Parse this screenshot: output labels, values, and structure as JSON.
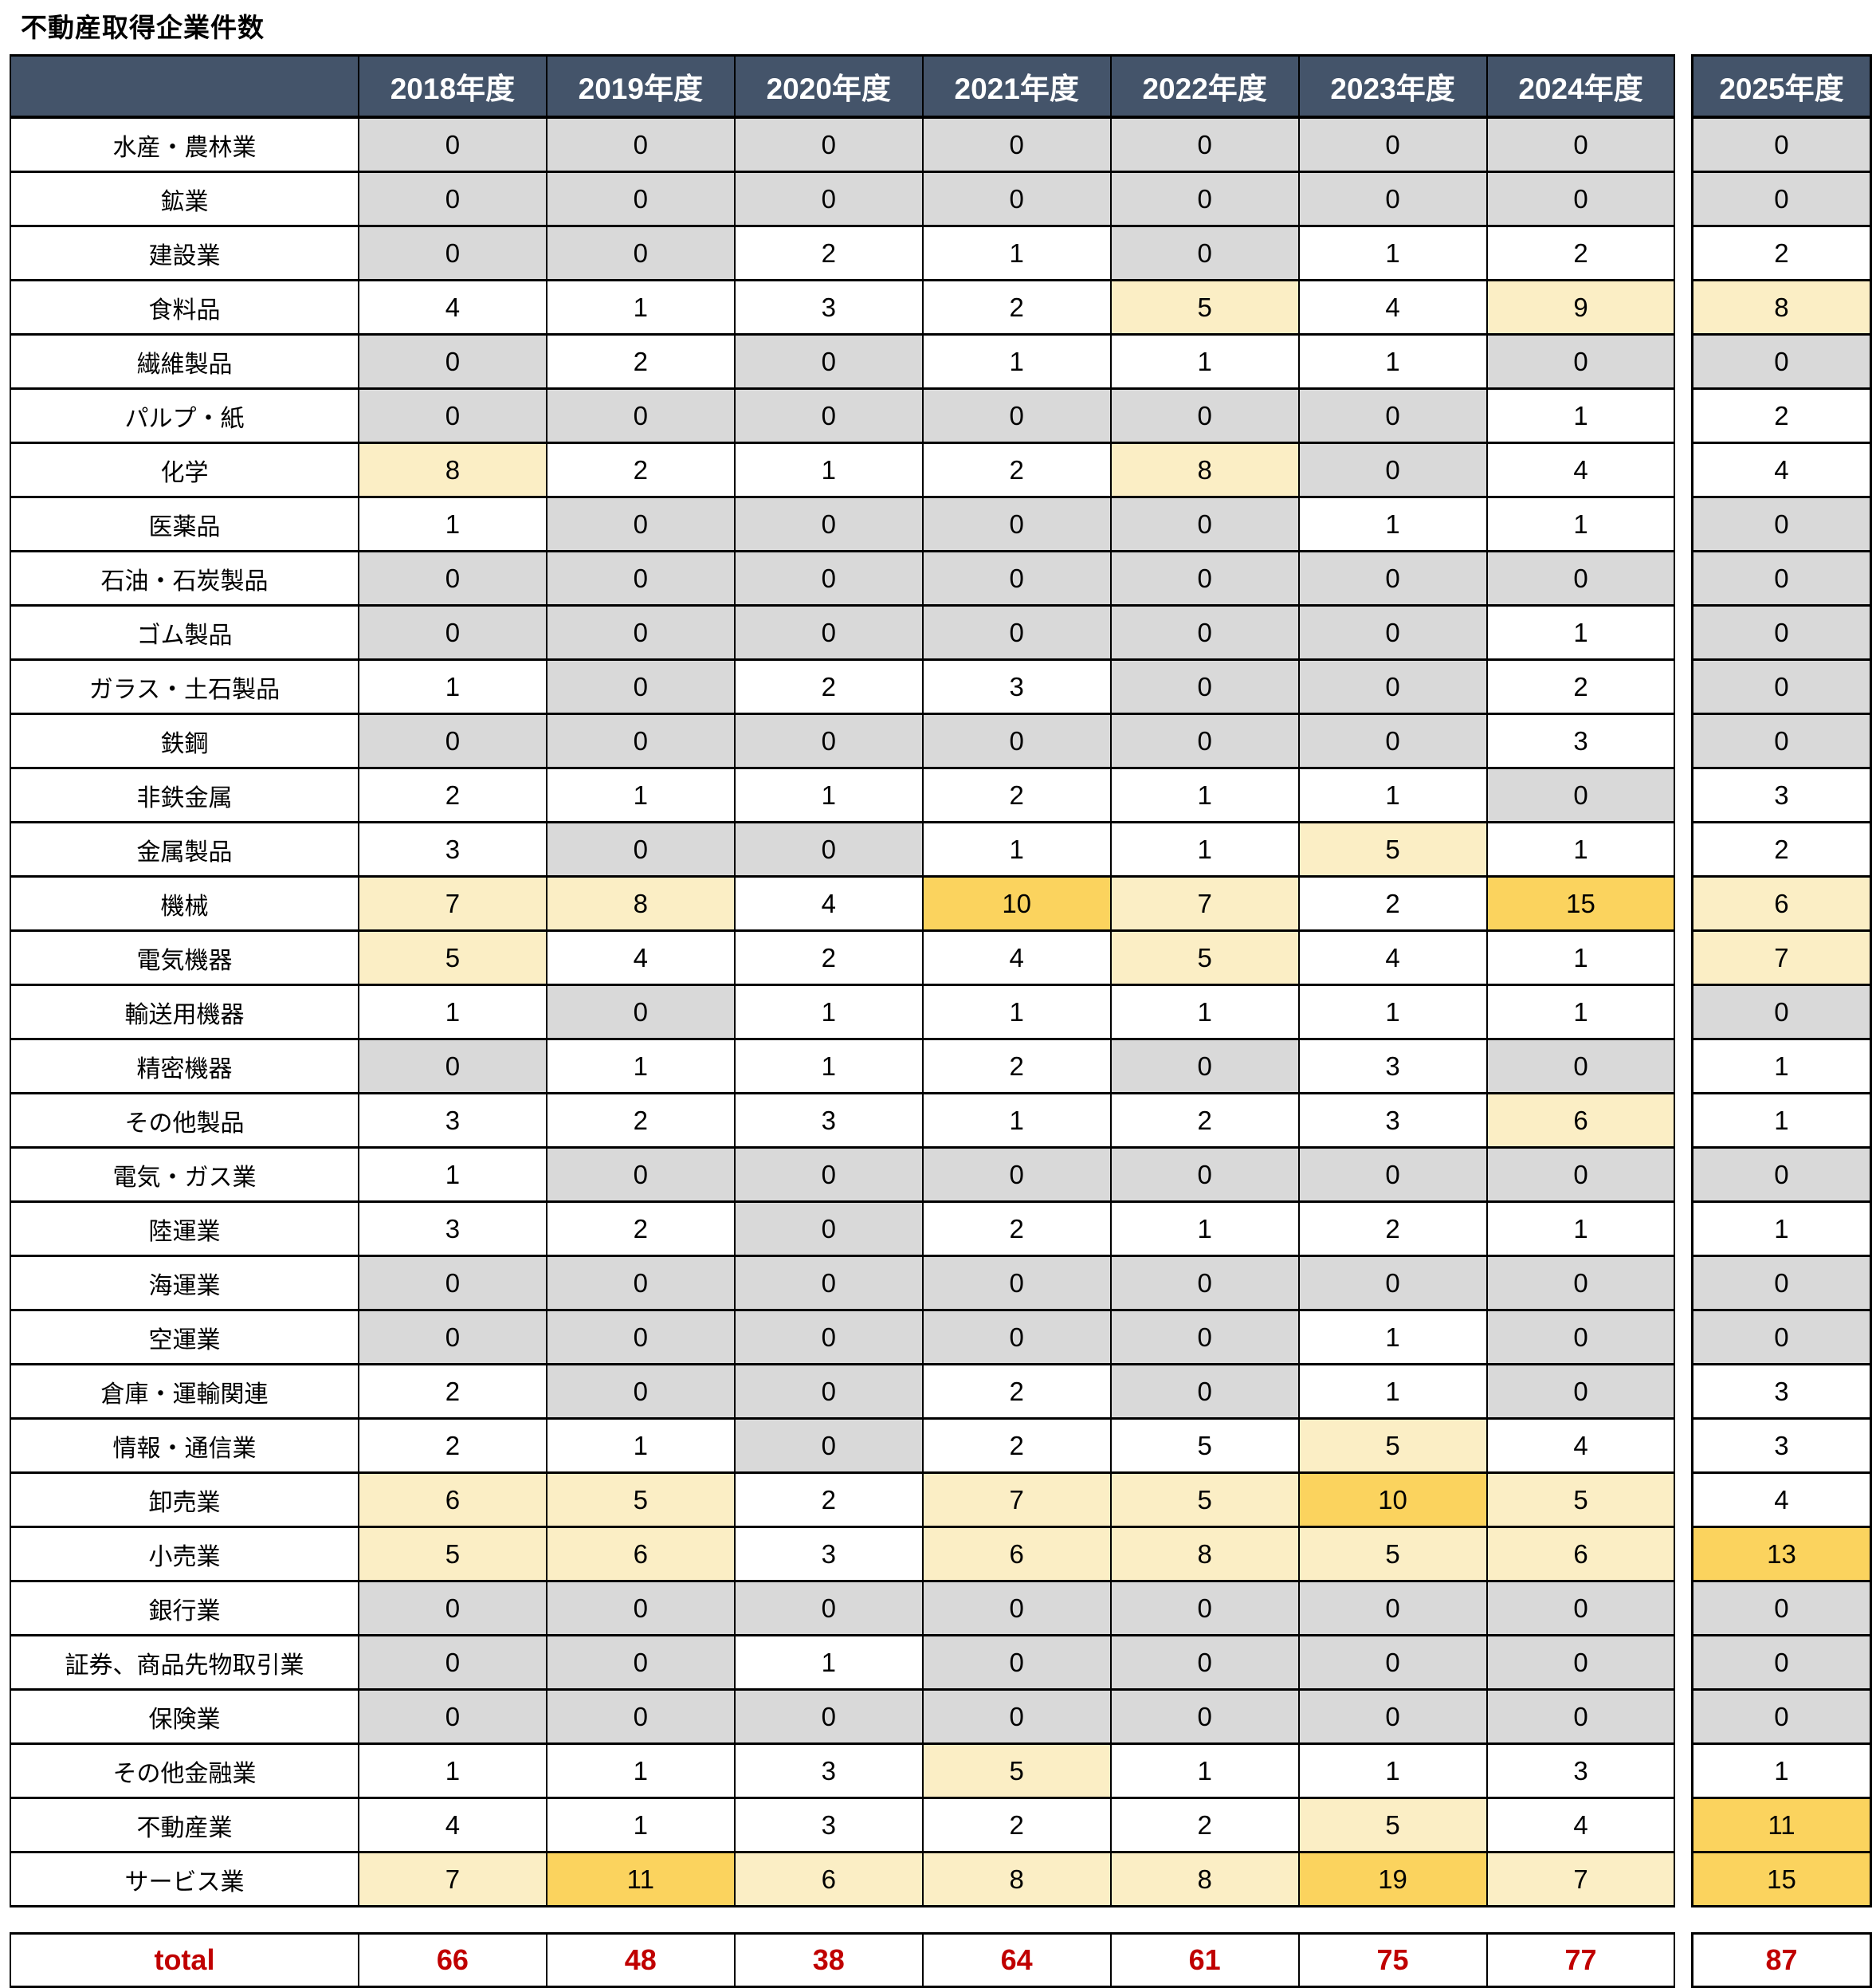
{
  "title": "不動産取得企業件数",
  "palette": {
    "header_bg": "#44546A",
    "header_text": "#FFFFFF",
    "zero_bg": "#D9D9D9",
    "white_bg": "#FFFFFF",
    "cream_bg": "#FBEEC5",
    "orange_bg": "#FBD35E",
    "total_text": "#C00000",
    "border": "#000000"
  },
  "chart_data": {
    "type": "table",
    "title": "不動産取得企業件数",
    "columns": [
      "2018年度",
      "2019年度",
      "2020年度",
      "2021年度",
      "2022年度",
      "2023年度",
      "2024年度",
      "2025年度"
    ],
    "color_legend": {
      "z": "zero value (gray cell)",
      "w": "normal value (white cell)",
      "y": "highlighted mid value (cream cell)",
      "o": "highlighted high value (orange cell)"
    },
    "rows": [
      {
        "label": "水産・農林業",
        "values": [
          0,
          0,
          0,
          0,
          0,
          0,
          0,
          0
        ],
        "colors": [
          "z",
          "z",
          "z",
          "z",
          "z",
          "z",
          "z",
          "z"
        ]
      },
      {
        "label": "鉱業",
        "values": [
          0,
          0,
          0,
          0,
          0,
          0,
          0,
          0
        ],
        "colors": [
          "z",
          "z",
          "z",
          "z",
          "z",
          "z",
          "z",
          "z"
        ]
      },
      {
        "label": "建設業",
        "values": [
          0,
          0,
          2,
          1,
          0,
          1,
          2,
          2
        ],
        "colors": [
          "z",
          "z",
          "w",
          "w",
          "z",
          "w",
          "w",
          "w"
        ]
      },
      {
        "label": "食料品",
        "values": [
          4,
          1,
          3,
          2,
          5,
          4,
          9,
          8
        ],
        "colors": [
          "w",
          "w",
          "w",
          "w",
          "y",
          "w",
          "y",
          "y"
        ]
      },
      {
        "label": "繊維製品",
        "values": [
          0,
          2,
          0,
          1,
          1,
          1,
          0,
          0
        ],
        "colors": [
          "z",
          "w",
          "z",
          "w",
          "w",
          "w",
          "z",
          "z"
        ]
      },
      {
        "label": "パルプ・紙",
        "values": [
          0,
          0,
          0,
          0,
          0,
          0,
          1,
          2
        ],
        "colors": [
          "z",
          "z",
          "z",
          "z",
          "z",
          "z",
          "w",
          "w"
        ]
      },
      {
        "label": "化学",
        "values": [
          8,
          2,
          1,
          2,
          8,
          0,
          4,
          4
        ],
        "colors": [
          "y",
          "w",
          "w",
          "w",
          "y",
          "z",
          "w",
          "w"
        ]
      },
      {
        "label": "医薬品",
        "values": [
          1,
          0,
          0,
          0,
          0,
          1,
          1,
          0
        ],
        "colors": [
          "w",
          "z",
          "z",
          "z",
          "z",
          "w",
          "w",
          "z"
        ]
      },
      {
        "label": "石油・石炭製品",
        "values": [
          0,
          0,
          0,
          0,
          0,
          0,
          0,
          0
        ],
        "colors": [
          "z",
          "z",
          "z",
          "z",
          "z",
          "z",
          "z",
          "z"
        ]
      },
      {
        "label": "ゴム製品",
        "values": [
          0,
          0,
          0,
          0,
          0,
          0,
          1,
          0
        ],
        "colors": [
          "z",
          "z",
          "z",
          "z",
          "z",
          "z",
          "w",
          "z"
        ]
      },
      {
        "label": "ガラス・土石製品",
        "values": [
          1,
          0,
          2,
          3,
          0,
          0,
          2,
          0
        ],
        "colors": [
          "w",
          "z",
          "w",
          "w",
          "z",
          "z",
          "w",
          "z"
        ]
      },
      {
        "label": "鉄鋼",
        "values": [
          0,
          0,
          0,
          0,
          0,
          0,
          3,
          0
        ],
        "colors": [
          "z",
          "z",
          "z",
          "z",
          "z",
          "z",
          "w",
          "z"
        ]
      },
      {
        "label": "非鉄金属",
        "values": [
          2,
          1,
          1,
          2,
          1,
          1,
          0,
          3
        ],
        "colors": [
          "w",
          "w",
          "w",
          "w",
          "w",
          "w",
          "z",
          "w"
        ]
      },
      {
        "label": "金属製品",
        "values": [
          3,
          0,
          0,
          1,
          1,
          5,
          1,
          2
        ],
        "colors": [
          "w",
          "z",
          "z",
          "w",
          "w",
          "y",
          "w",
          "w"
        ]
      },
      {
        "label": "機械",
        "values": [
          7,
          8,
          4,
          10,
          7,
          2,
          15,
          6
        ],
        "colors": [
          "y",
          "y",
          "w",
          "o",
          "y",
          "w",
          "o",
          "y"
        ]
      },
      {
        "label": "電気機器",
        "values": [
          5,
          4,
          2,
          4,
          5,
          4,
          1,
          7
        ],
        "colors": [
          "y",
          "w",
          "w",
          "w",
          "y",
          "w",
          "w",
          "y"
        ]
      },
      {
        "label": "輸送用機器",
        "values": [
          1,
          0,
          1,
          1,
          1,
          1,
          1,
          0
        ],
        "colors": [
          "w",
          "z",
          "w",
          "w",
          "w",
          "w",
          "w",
          "z"
        ]
      },
      {
        "label": "精密機器",
        "values": [
          0,
          1,
          1,
          2,
          0,
          3,
          0,
          1
        ],
        "colors": [
          "z",
          "w",
          "w",
          "w",
          "z",
          "w",
          "z",
          "w"
        ]
      },
      {
        "label": "その他製品",
        "values": [
          3,
          2,
          3,
          1,
          2,
          3,
          6,
          1
        ],
        "colors": [
          "w",
          "w",
          "w",
          "w",
          "w",
          "w",
          "y",
          "w"
        ]
      },
      {
        "label": "電気・ガス業",
        "values": [
          1,
          0,
          0,
          0,
          0,
          0,
          0,
          0
        ],
        "colors": [
          "w",
          "z",
          "z",
          "z",
          "z",
          "z",
          "z",
          "z"
        ]
      },
      {
        "label": "陸運業",
        "values": [
          3,
          2,
          0,
          2,
          1,
          2,
          1,
          1
        ],
        "colors": [
          "w",
          "w",
          "z",
          "w",
          "w",
          "w",
          "w",
          "w"
        ]
      },
      {
        "label": "海運業",
        "values": [
          0,
          0,
          0,
          0,
          0,
          0,
          0,
          0
        ],
        "colors": [
          "z",
          "z",
          "z",
          "z",
          "z",
          "z",
          "z",
          "z"
        ]
      },
      {
        "label": "空運業",
        "values": [
          0,
          0,
          0,
          0,
          0,
          1,
          0,
          0
        ],
        "colors": [
          "z",
          "z",
          "z",
          "z",
          "z",
          "w",
          "z",
          "z"
        ]
      },
      {
        "label": "倉庫・運輸関連",
        "values": [
          2,
          0,
          0,
          2,
          0,
          1,
          0,
          3
        ],
        "colors": [
          "w",
          "z",
          "z",
          "w",
          "z",
          "w",
          "z",
          "w"
        ]
      },
      {
        "label": "情報・通信業",
        "values": [
          2,
          1,
          0,
          2,
          5,
          5,
          4,
          3
        ],
        "colors": [
          "w",
          "w",
          "z",
          "w",
          "w",
          "y",
          "w",
          "w"
        ]
      },
      {
        "label": "卸売業",
        "values": [
          6,
          5,
          2,
          7,
          5,
          10,
          5,
          4
        ],
        "colors": [
          "y",
          "y",
          "w",
          "y",
          "y",
          "o",
          "y",
          "w"
        ]
      },
      {
        "label": "小売業",
        "values": [
          5,
          6,
          3,
          6,
          8,
          5,
          6,
          13
        ],
        "colors": [
          "y",
          "y",
          "w",
          "y",
          "y",
          "y",
          "y",
          "o"
        ]
      },
      {
        "label": "銀行業",
        "values": [
          0,
          0,
          0,
          0,
          0,
          0,
          0,
          0
        ],
        "colors": [
          "z",
          "z",
          "z",
          "z",
          "z",
          "z",
          "z",
          "z"
        ]
      },
      {
        "label": "証券、商品先物取引業",
        "values": [
          0,
          0,
          1,
          0,
          0,
          0,
          0,
          0
        ],
        "colors": [
          "z",
          "z",
          "w",
          "z",
          "z",
          "z",
          "z",
          "z"
        ]
      },
      {
        "label": "保険業",
        "values": [
          0,
          0,
          0,
          0,
          0,
          0,
          0,
          0
        ],
        "colors": [
          "z",
          "z",
          "z",
          "z",
          "z",
          "z",
          "z",
          "z"
        ]
      },
      {
        "label": "その他金融業",
        "values": [
          1,
          1,
          3,
          5,
          1,
          1,
          3,
          1
        ],
        "colors": [
          "w",
          "w",
          "w",
          "y",
          "w",
          "w",
          "w",
          "w"
        ]
      },
      {
        "label": "不動産業",
        "values": [
          4,
          1,
          3,
          2,
          2,
          5,
          4,
          11
        ],
        "colors": [
          "w",
          "w",
          "w",
          "w",
          "w",
          "y",
          "w",
          "o"
        ]
      },
      {
        "label": "サービス業",
        "values": [
          7,
          11,
          6,
          8,
          8,
          19,
          7,
          15
        ],
        "colors": [
          "y",
          "o",
          "y",
          "y",
          "y",
          "o",
          "y",
          "o"
        ]
      }
    ],
    "total": {
      "label": "total",
      "values": [
        66,
        48,
        38,
        64,
        61,
        75,
        77,
        87
      ]
    }
  }
}
